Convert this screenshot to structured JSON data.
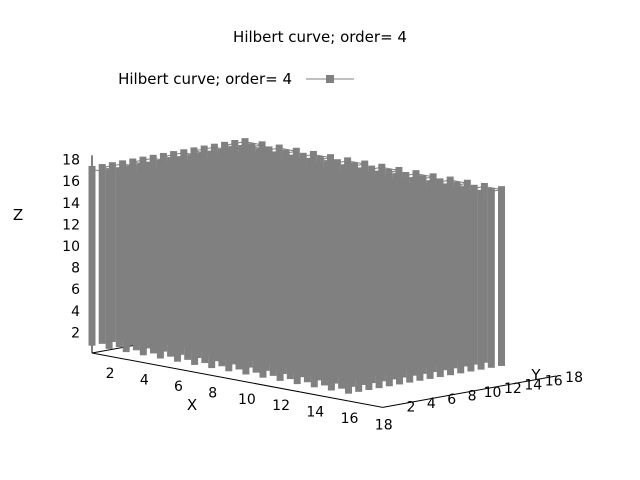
{
  "chart_data": {
    "type": "scatter",
    "title": "Hilbert curve; order= 4",
    "legend": {
      "label": "Hilbert curve; order= 4",
      "placement": "top-left"
    },
    "xlabel": "X",
    "ylabel": "Y",
    "zlabel": "Z",
    "xlim": [
      1,
      18
    ],
    "ylim": [
      1,
      18
    ],
    "zlim": [
      0,
      18
    ],
    "x_ticks": [
      "2",
      "4",
      "6",
      "8",
      "10",
      "12",
      "14",
      "16",
      "18"
    ],
    "y_ticks": [
      "2",
      "4",
      "6",
      "8",
      "10",
      "12",
      "14",
      "16",
      "18"
    ],
    "z_ticks": [
      "2",
      "4",
      "6",
      "8",
      "10",
      "12",
      "14",
      "16",
      "18"
    ],
    "grid": false,
    "series": [
      {
        "name": "Hilbert curve; order= 4",
        "order": 4,
        "z_range": [
          1,
          17
        ],
        "color": "#808080",
        "marker": "square"
      }
    ]
  }
}
